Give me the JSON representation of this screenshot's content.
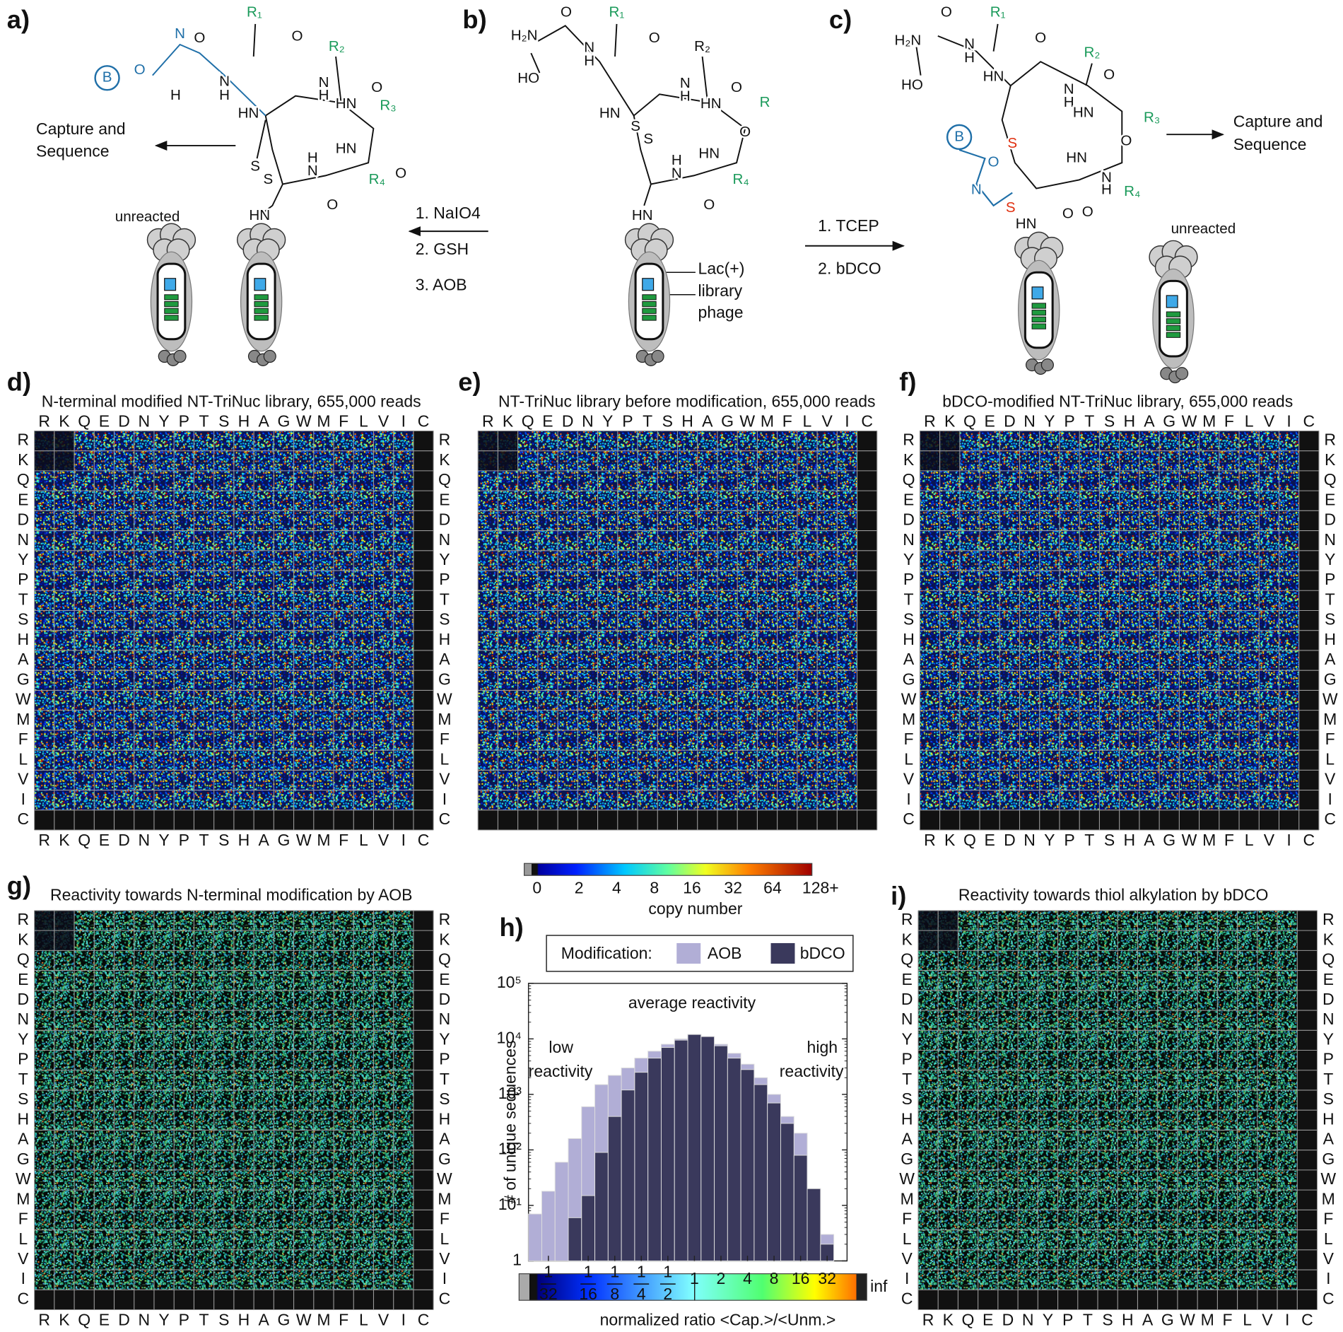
{
  "panel_labels": [
    "a)",
    "b)",
    "c)",
    "d)",
    "e)",
    "f)",
    "g)",
    "h)",
    "i)"
  ],
  "schemes": [
    {
      "atoms": [
        "O",
        "N",
        "H",
        "O",
        "N",
        "H",
        "R₁",
        "O",
        "HN",
        "N",
        "H",
        "R₂",
        "O",
        "HN",
        "R₃",
        "HN",
        "O",
        "R₄",
        "H",
        "N",
        "O",
        "S",
        "S",
        "HN",
        "B"
      ],
      "capture": [
        "Capture and",
        "Sequence"
      ],
      "unreacted": "unreacted"
    },
    {
      "atoms": [
        "H₂N",
        "O",
        "R₁",
        "N",
        "H",
        "HO",
        "O",
        "HN",
        "R₂",
        "N",
        "H",
        "O",
        "HN",
        "R",
        "HN",
        "O",
        "R₄",
        "H",
        "N",
        "O",
        "S",
        "S",
        "HN"
      ],
      "phage": [
        "Lac(+)",
        "library",
        "phage"
      ]
    },
    {
      "atoms": [
        "H₂N",
        "O",
        "R₁",
        "N",
        "H",
        "HO",
        "O",
        "HN",
        "R₂",
        "N",
        "H",
        "O",
        "HN",
        "R₃",
        "O",
        "HN",
        "R₄",
        "N",
        "H",
        "O",
        "S",
        "S",
        "O",
        "N",
        "HN",
        "O",
        "B"
      ],
      "capture": [
        "Capture and",
        "Sequence"
      ],
      "unreacted": "unreacted"
    }
  ],
  "steps_ab": [
    "1. NaIO4",
    "2. GSH",
    "3. AOB"
  ],
  "steps_bc": [
    "1. TCEP",
    "2. bDCO"
  ],
  "amino_acids": [
    "R",
    "K",
    "Q",
    "E",
    "D",
    "N",
    "Y",
    "P",
    "T",
    "S",
    "H",
    "A",
    "G",
    "W",
    "M",
    "F",
    "L",
    "V",
    "I",
    "C"
  ],
  "heatmaps": [
    {
      "title": "N-terminal modified NT-TriNuc library, 655,000 reads"
    },
    {
      "title": "NT-TriNuc library before modification, 655,000 reads"
    },
    {
      "title": "bDCO-modified NT-TriNuc library, 655,000 reads"
    },
    {
      "title": "Reactivity towards N-terminal modification by AOB"
    },
    {
      "title": "Reactivity towards thiol alkylation by bDCO"
    }
  ],
  "colorbar_copy": {
    "ticks": [
      "0",
      "2",
      "4",
      "8",
      "16",
      "32",
      "64",
      "128+"
    ],
    "label": "copy number"
  },
  "colorbar_ratio": {
    "end": "inf",
    "label": "normalized ratio <Cap.>/<Unm.>"
  },
  "chart_data": {
    "type": "bar",
    "categories": [
      null,
      "1/32",
      null,
      null,
      "1/16",
      null,
      "1/8",
      null,
      "1/4",
      null,
      "1/2",
      null,
      "1",
      null,
      "2",
      null,
      "4",
      null,
      "8",
      null,
      "16",
      null,
      "32",
      null
    ],
    "series": [
      {
        "name": "AOB",
        "color": "#b1aed6",
        "values": [
          7,
          18,
          60,
          160,
          600,
          1500,
          2200,
          3000,
          4500,
          6000,
          8000,
          10000,
          12000,
          11000,
          8000,
          5500,
          3500,
          2000,
          1000,
          400,
          200,
          20,
          3,
          null
        ]
      },
      {
        "name": "bDCO",
        "color": "#3a395c",
        "values": [
          null,
          null,
          null,
          6,
          15,
          90,
          400,
          1200,
          2500,
          4500,
          7000,
          9500,
          12000,
          11000,
          7500,
          4500,
          2800,
          1500,
          700,
          300,
          80,
          20,
          2,
          null
        ]
      }
    ],
    "ylim": [
      1,
      100000
    ],
    "yscale": "log",
    "yticks": [
      1,
      {
        "value": 10,
        "label": "10¹"
      },
      {
        "value": 100,
        "label": "10²"
      },
      {
        "value": 1000,
        "label": "10³"
      },
      {
        "value": 10000,
        "label": "10⁴"
      },
      {
        "value": 100000,
        "label": "10⁵"
      }
    ],
    "ylabel": "# of unique sequences",
    "legend_title": "Modification:",
    "annotations": [
      "average reactivity",
      "low reactivity",
      "high reactivity"
    ]
  }
}
